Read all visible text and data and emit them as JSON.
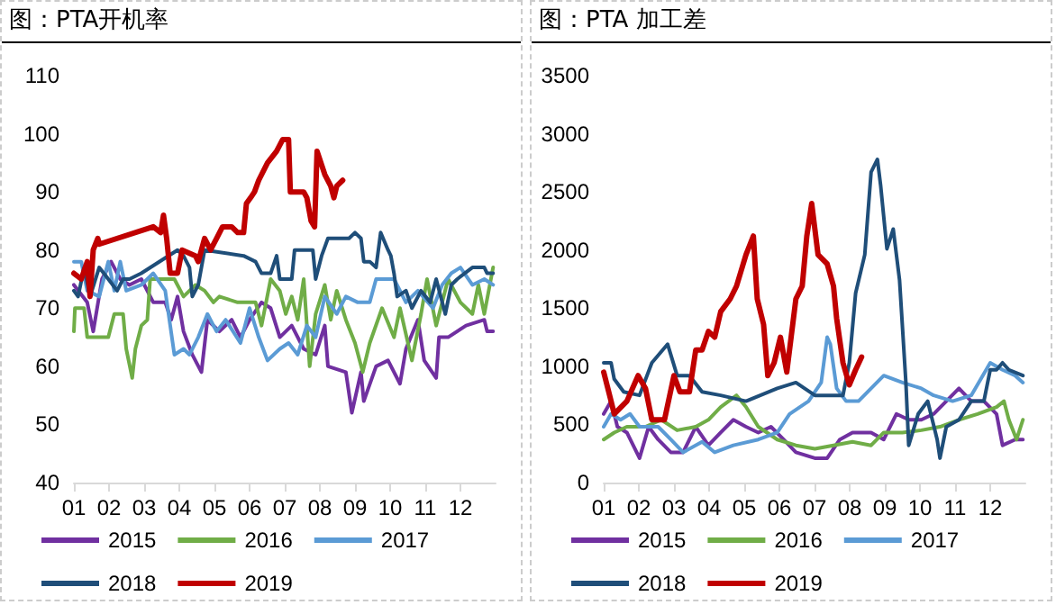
{
  "chart_data": [
    {
      "type": "line",
      "title": "图：PTA开机率",
      "xlim": [
        1,
        13
      ],
      "xticks": [
        {
          "value": 1,
          "label": "01"
        },
        {
          "value": 2,
          "label": "02"
        },
        {
          "value": 3,
          "label": "03"
        },
        {
          "value": 4,
          "label": "04"
        },
        {
          "value": 5,
          "label": "05"
        },
        {
          "value": 6,
          "label": "06"
        },
        {
          "value": 7,
          "label": "07"
        },
        {
          "value": 8,
          "label": "08"
        },
        {
          "value": 9,
          "label": "09"
        },
        {
          "value": 10,
          "label": "10"
        },
        {
          "value": 11,
          "label": "11"
        },
        {
          "value": 12,
          "label": "12"
        }
      ],
      "ylim": [
        40,
        110
      ],
      "yticks": [
        40,
        50,
        60,
        70,
        80,
        90,
        100,
        110
      ],
      "grid": false,
      "legend": "bottom",
      "marker": "none",
      "line_style": "solid",
      "series": [
        {
          "name": "2015",
          "color": "#7030a0",
          "x": [
            1,
            1.38,
            1.55,
            1.8,
            2.06,
            2.32,
            2.58,
            2.92,
            3.26,
            3.6,
            3.77,
            3.95,
            4.12,
            4.37,
            4.63,
            4.8,
            5.14,
            5.49,
            5.74,
            6,
            6.34,
            6.6,
            6.86,
            7.2,
            7.54,
            7.88,
            8.14,
            8.23,
            8.74,
            8.91,
            9.17,
            9.25,
            9.6,
            9.94,
            10.28,
            10.45,
            10.79,
            10.97,
            11.31,
            11.39,
            11.65,
            12.16,
            12.68,
            12.76,
            12.93
          ],
          "values": [
            74,
            71,
            66,
            75,
            78,
            75,
            74,
            75,
            71,
            71,
            68,
            72,
            66,
            62,
            59,
            68,
            66,
            68,
            65,
            68,
            71,
            70,
            65,
            67,
            63,
            62,
            67,
            60,
            59,
            52,
            59,
            54,
            60,
            61,
            57,
            63,
            68,
            61,
            58,
            65,
            65,
            67,
            68,
            66,
            66
          ]
        },
        {
          "name": "2016",
          "color": "#70ad47",
          "x": [
            1,
            1.03,
            1.29,
            1.38,
            1.98,
            2.15,
            2.4,
            2.49,
            2.66,
            2.75,
            2.92,
            3.09,
            3.17,
            3.86,
            4.12,
            4.46,
            4.72,
            4.97,
            5.14,
            5.66,
            6.17,
            6.34,
            6.6,
            6.86,
            7.03,
            7.2,
            7.37,
            7.54,
            7.71,
            7.88,
            8.14,
            8.31,
            8.48,
            8.74,
            9,
            9.22,
            9.42,
            9.77,
            10.11,
            10.28,
            10.62,
            10.88,
            11.05,
            11.31,
            11.65,
            12,
            12.34,
            12.51,
            12.68,
            12.93
          ],
          "values": [
            66,
            70,
            70,
            65,
            65,
            69,
            69,
            63,
            58,
            63,
            67,
            68,
            75,
            75,
            72,
            74,
            73,
            71,
            72,
            71,
            71,
            67,
            75,
            73,
            69,
            72,
            68,
            75,
            60,
            69,
            74,
            68,
            73,
            68,
            64,
            59,
            64,
            70,
            65,
            70,
            61,
            69,
            75,
            67,
            75,
            71,
            69,
            74,
            69,
            77
          ]
        },
        {
          "name": "2017",
          "color": "#5b9bd5",
          "x": [
            1,
            1.21,
            1.38,
            1.72,
            1.98,
            2.15,
            2.32,
            2.49,
            2.92,
            3.26,
            3.6,
            3.86,
            4.12,
            4.29,
            4.54,
            4.8,
            5.06,
            5.32,
            5.74,
            6,
            6.26,
            6.51,
            6.86,
            7.11,
            7.37,
            7.63,
            7.88,
            8.14,
            8.48,
            8.74,
            9.08,
            9.42,
            9.6,
            10.11,
            10.45,
            10.79,
            11.22,
            11.48,
            11.74,
            12,
            12.34,
            12.68,
            12.93
          ],
          "values": [
            78,
            78,
            73,
            72,
            78,
            73,
            78,
            73,
            74,
            76,
            73,
            62,
            63,
            62,
            65,
            69,
            66,
            68,
            64,
            70,
            65,
            61,
            63,
            64,
            62,
            67,
            65,
            72,
            69,
            72,
            71,
            71,
            75,
            75,
            71,
            73,
            70,
            74,
            76,
            77,
            74,
            75,
            74
          ]
        },
        {
          "name": "2018",
          "color": "#1f4e79",
          "x": [
            1,
            1.12,
            1.29,
            1.46,
            1.72,
            1.98,
            2.23,
            2.4,
            2.58,
            2.92,
            3.95,
            4.12,
            4.29,
            4.37,
            4.54,
            4.72,
            5.83,
            6.17,
            6.34,
            6.6,
            6.77,
            6.86,
            7.2,
            7.28,
            7.8,
            7.88,
            8.05,
            8.23,
            8.83,
            9,
            9.17,
            9.25,
            9.42,
            9.6,
            9.73,
            9.94,
            10.02,
            10.11,
            10.2,
            10.45,
            10.62,
            10.88,
            11.14,
            11.31,
            11.57,
            11.74,
            11.91,
            12.34,
            12.68,
            12.76,
            12.93
          ],
          "values": [
            73,
            72,
            77,
            72,
            77,
            75,
            73,
            75,
            75,
            76,
            80,
            79,
            77,
            72,
            74,
            80,
            79,
            78,
            76,
            76,
            79,
            75,
            75,
            80,
            80,
            75,
            79,
            82,
            82,
            83,
            82,
            78,
            78,
            77,
            83,
            80,
            79,
            76,
            72,
            73,
            70,
            73,
            71,
            75,
            69,
            74,
            75,
            77,
            77,
            76,
            76
          ]
        },
        {
          "name": "2019",
          "color": "#c00000",
          "x": [
            1,
            1.21,
            1.38,
            1.46,
            1.55,
            1.68,
            1.72,
            3.26,
            3.47,
            3.55,
            3.64,
            3.74,
            3.95,
            4.08,
            4.46,
            4.54,
            4.72,
            4.89,
            5.06,
            5.23,
            5.49,
            5.66,
            5.83,
            5.91,
            6.03,
            6.14,
            6.26,
            6.51,
            6.77,
            6.94,
            7.11,
            7.16,
            7.54,
            7.63,
            7.75,
            7.85,
            7.92,
            8.14,
            8.31,
            8.4,
            8.48,
            8.65
          ],
          "values": [
            76,
            75,
            78,
            72,
            80,
            82,
            81,
            84,
            83,
            86,
            82,
            76,
            76,
            80,
            79,
            78,
            82,
            80,
            82,
            84,
            84,
            83,
            83,
            88,
            89,
            90,
            92,
            95,
            97,
            99,
            99,
            90,
            90,
            89,
            85,
            84,
            97,
            93,
            91,
            89,
            91,
            92
          ]
        }
      ]
    },
    {
      "type": "line",
      "title": "图：PTA 加工差",
      "xlim": [
        1,
        13
      ],
      "xticks": [
        {
          "value": 1,
          "label": "01"
        },
        {
          "value": 2,
          "label": "02"
        },
        {
          "value": 3,
          "label": "03"
        },
        {
          "value": 4,
          "label": "04"
        },
        {
          "value": 5,
          "label": "05"
        },
        {
          "value": 6,
          "label": "06"
        },
        {
          "value": 7,
          "label": "07"
        },
        {
          "value": 8,
          "label": "08"
        },
        {
          "value": 9,
          "label": "09"
        },
        {
          "value": 10,
          "label": "10"
        },
        {
          "value": 11,
          "label": "11"
        },
        {
          "value": 12,
          "label": "12"
        }
      ],
      "ylim": [
        0,
        3500
      ],
      "yticks": [
        0,
        500,
        1000,
        1500,
        2000,
        2500,
        3000,
        3500
      ],
      "grid": false,
      "legend": "bottom",
      "marker": "none",
      "line_style": "solid",
      "series": [
        {
          "name": "2015",
          "color": "#7030a0",
          "x": [
            1,
            1.21,
            1.39,
            1.66,
            2.02,
            2.28,
            2.55,
            2.91,
            3.26,
            3.62,
            3.98,
            4.33,
            4.69,
            5.05,
            5.4,
            5.76,
            6.12,
            6.47,
            7.01,
            7.36,
            7.72,
            8.08,
            8.61,
            8.97,
            9.33,
            9.68,
            10.04,
            10.39,
            10.75,
            11.11,
            11.46,
            11.82,
            12.18,
            12.35,
            12.71,
            12.93
          ],
          "values": [
            590,
            700,
            480,
            430,
            210,
            480,
            370,
            260,
            260,
            480,
            320,
            430,
            540,
            480,
            430,
            480,
            370,
            260,
            210,
            210,
            370,
            430,
            430,
            370,
            590,
            540,
            540,
            590,
            700,
            810,
            700,
            700,
            590,
            320,
            370,
            370
          ]
        },
        {
          "name": "2016",
          "color": "#70ad47",
          "x": [
            1,
            1.3,
            1.66,
            2.19,
            2.64,
            3.09,
            3.62,
            3.98,
            4.33,
            4.78,
            5.05,
            5.4,
            5.94,
            6.47,
            7.01,
            7.54,
            8.08,
            8.61,
            8.97,
            9.5,
            10.04,
            10.57,
            11.11,
            11.64,
            12.18,
            12.39,
            12.53,
            12.75,
            12.93
          ],
          "values": [
            370,
            430,
            480,
            480,
            540,
            450,
            480,
            540,
            650,
            750,
            650,
            480,
            370,
            320,
            290,
            320,
            350,
            320,
            430,
            430,
            450,
            480,
            540,
            590,
            650,
            700,
            540,
            370,
            540
          ]
        },
        {
          "name": "2017",
          "color": "#5b9bd5",
          "x": [
            1,
            1.21,
            1.48,
            1.75,
            2.02,
            2.55,
            2.91,
            3.26,
            3.8,
            4.16,
            4.69,
            5.4,
            5.94,
            6.29,
            6.83,
            7.19,
            7.36,
            7.45,
            7.63,
            7.9,
            8.25,
            8.61,
            8.97,
            9.5,
            10.04,
            10.39,
            10.93,
            11.46,
            12,
            12.35,
            12.71,
            12.93
          ],
          "values": [
            480,
            590,
            540,
            590,
            480,
            480,
            370,
            260,
            350,
            260,
            320,
            370,
            430,
            590,
            700,
            860,
            1250,
            1190,
            810,
            700,
            700,
            810,
            920,
            860,
            810,
            750,
            700,
            750,
            1030,
            970,
            920,
            860
          ]
        },
        {
          "name": "2018",
          "color": "#1f4e79",
          "x": [
            1,
            1.21,
            1.3,
            1.57,
            2.02,
            2.37,
            2.82,
            3.09,
            3.44,
            3.8,
            4.33,
            5.05,
            5.94,
            6.47,
            7.01,
            7.54,
            7.81,
            7.99,
            8.17,
            8.43,
            8.61,
            8.79,
            8.88,
            9.06,
            9.24,
            9.42,
            9.6,
            9.68,
            9.95,
            10.22,
            10.49,
            10.57,
            10.75,
            11.11,
            11.46,
            11.82,
            12,
            12.18,
            12.35,
            12.53,
            12.93
          ],
          "values": [
            1030,
            1030,
            890,
            780,
            750,
            1030,
            1190,
            920,
            920,
            780,
            750,
            700,
            810,
            860,
            750,
            750,
            750,
            1030,
            1630,
            1960,
            2670,
            2780,
            2560,
            2010,
            2180,
            1740,
            860,
            320,
            590,
            700,
            370,
            210,
            480,
            540,
            700,
            700,
            970,
            970,
            1030,
            970,
            920
          ]
        },
        {
          "name": "2019",
          "color": "#c00000",
          "x": [
            1,
            1.21,
            1.3,
            1.66,
            1.98,
            2.19,
            2.37,
            2.73,
            3,
            3.17,
            3.44,
            3.62,
            3.8,
            3.98,
            4.16,
            4.33,
            4.6,
            4.78,
            5.05,
            5.26,
            5.37,
            5.55,
            5.67,
            5.85,
            6.03,
            6.21,
            6.47,
            6.65,
            6.78,
            6.92,
            7.1,
            7.36,
            7.54,
            7.63,
            7.81,
            7.99,
            8.17,
            8.34
          ],
          "values": [
            950,
            700,
            590,
            700,
            920,
            810,
            540,
            540,
            920,
            780,
            780,
            1140,
            1140,
            1300,
            1250,
            1470,
            1580,
            1690,
            1960,
            2120,
            1580,
            1360,
            920,
            1030,
            1250,
            950,
            1580,
            1690,
            2120,
            2400,
            1960,
            1880,
            1690,
            1410,
            1030,
            840,
            970,
            1080
          ]
        }
      ]
    }
  ]
}
